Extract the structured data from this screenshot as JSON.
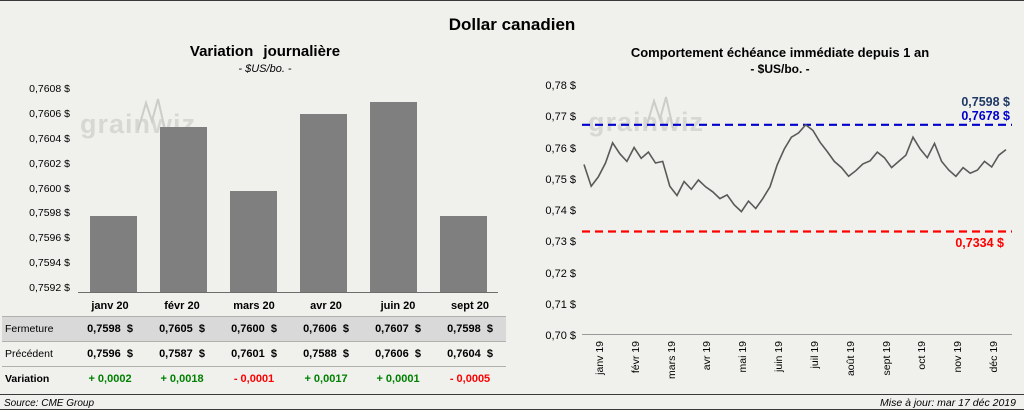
{
  "page_title": "Dollar canadien",
  "watermark": "grainwiz",
  "footer": {
    "source": "Source: CME Group",
    "updated": "Mise à jour: mar 17 déc 2019"
  },
  "colors": {
    "bar": "#7f7f7f",
    "line": "#595959",
    "high": "#0000cc",
    "low": "#ff0000",
    "last": "#1f3864",
    "positive": "#008000",
    "negative": "#ff0000",
    "shaded_row": "#d9d9d9"
  },
  "chart_data": [
    {
      "type": "bar",
      "title": "Variation journalière",
      "subtitle": "- $US/bo. -",
      "categories": [
        "janv 20",
        "févr 20",
        "mars 20",
        "avr 20",
        "juin 20",
        "sept 20"
      ],
      "values": [
        0.7598,
        0.7605,
        0.76,
        0.7606,
        0.7607,
        0.7598
      ],
      "ylim": [
        0.7592,
        0.7608
      ],
      "yticks": [
        "0,7608 $",
        "0,7606 $",
        "0,7604 $",
        "0,7602 $",
        "0,7600 $",
        "0,7598 $",
        "0,7596 $",
        "0,7594 $",
        "0,7592 $"
      ],
      "grid": false,
      "table": {
        "rows": [
          {
            "label": "Fermeture",
            "shaded": true,
            "values": [
              "0,7598  $",
              "0,7605  $",
              "0,7600  $",
              "0,7606  $",
              "0,7607  $",
              "0,7598  $"
            ]
          },
          {
            "label": "Précédent",
            "shaded": false,
            "values": [
              "0,7596  $",
              "0,7587  $",
              "0,7601  $",
              "0,7588  $",
              "0,7606  $",
              "0,7604  $"
            ]
          },
          {
            "label": "Variation",
            "shaded": false,
            "bold_label": true,
            "values": [
              "+ 0,0002",
              "+ 0,0018",
              "- 0,0001",
              "+ 0,0017",
              "+ 0,0001",
              "- 0,0005"
            ],
            "signs": [
              1,
              1,
              -1,
              1,
              1,
              -1
            ]
          }
        ]
      }
    },
    {
      "type": "line",
      "title": "Comportement échéance immédiate depuis 1 an",
      "subtitle": "- $US/bo. -",
      "x_labels": [
        "janv 19",
        "févr 19",
        "mars 19",
        "avr 19",
        "mai 19",
        "juin 19",
        "juil 19",
        "août 19",
        "sept 19",
        "oct 19",
        "nov 19",
        "déc 19"
      ],
      "ylim": [
        0.7,
        0.78
      ],
      "yticks": [
        "0,78 $",
        "0,77 $",
        "0,76 $",
        "0,75 $",
        "0,74 $",
        "0,73 $",
        "0,72 $",
        "0,71 $",
        "0,70 $"
      ],
      "grid": false,
      "high_line": {
        "value": 0.7678,
        "label": "0,7678 $"
      },
      "low_line": {
        "value": 0.7334,
        "label": "0,7334 $"
      },
      "last_point": {
        "value": 0.7598,
        "label": "0,7598 $"
      },
      "series": [
        {
          "name": "$US/bo.",
          "values": [
            0.755,
            0.748,
            0.751,
            0.7555,
            0.762,
            0.7585,
            0.756,
            0.7605,
            0.757,
            0.759,
            0.7555,
            0.756,
            0.748,
            0.745,
            0.7495,
            0.747,
            0.75,
            0.7478,
            0.7462,
            0.744,
            0.7452,
            0.742,
            0.7398,
            0.7432,
            0.7408,
            0.744,
            0.7478,
            0.7548,
            0.76,
            0.7638,
            0.7652,
            0.7678,
            0.766,
            0.7622,
            0.7592,
            0.756,
            0.754,
            0.7512,
            0.753,
            0.7552,
            0.7562,
            0.759,
            0.7572,
            0.754,
            0.756,
            0.758,
            0.7638,
            0.76,
            0.7572,
            0.7618,
            0.756,
            0.7532,
            0.7512,
            0.754,
            0.7522,
            0.7532,
            0.756,
            0.7542,
            0.758,
            0.7598
          ]
        }
      ]
    }
  ]
}
